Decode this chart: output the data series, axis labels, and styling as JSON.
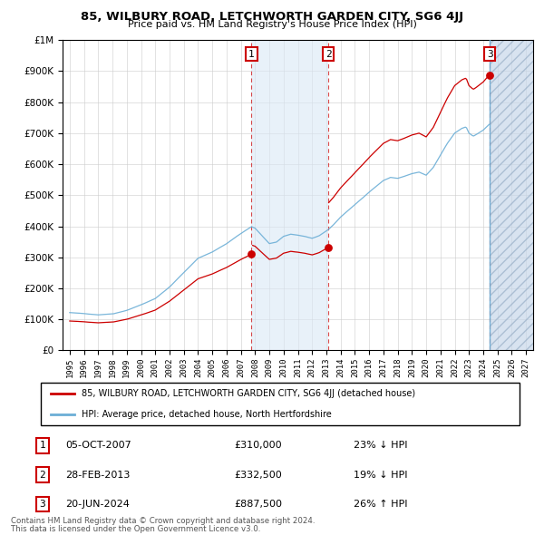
{
  "title": "85, WILBURY ROAD, LETCHWORTH GARDEN CITY, SG6 4JJ",
  "subtitle": "Price paid vs. HM Land Registry's House Price Index (HPI)",
  "legend_label_red": "85, WILBURY ROAD, LETCHWORTH GARDEN CITY, SG6 4JJ (detached house)",
  "legend_label_blue": "HPI: Average price, detached house, North Hertfordshire",
  "transactions": [
    {
      "num": 1,
      "date": "05-OCT-2007",
      "price": 310000,
      "pct": "23%",
      "dir": "↓",
      "x_year": 2007.75
    },
    {
      "num": 2,
      "date": "28-FEB-2013",
      "price": 332500,
      "pct": "19%",
      "dir": "↓",
      "x_year": 2013.15
    },
    {
      "num": 3,
      "date": "20-JUN-2024",
      "price": 887500,
      "pct": "26%",
      "dir": "↑",
      "x_year": 2024.46
    }
  ],
  "footer_line1": "Contains HM Land Registry data © Crown copyright and database right 2024.",
  "footer_line2": "This data is licensed under the Open Government Licence v3.0.",
  "ylim": [
    0,
    1000000
  ],
  "xlim_start": 1994.5,
  "xlim_end": 2027.5,
  "hatch_start": 2024.46,
  "hatch_end": 2027.5,
  "hpi_color": "#6baed6",
  "red_color": "#cc0000",
  "shade_color": "#dae8f5",
  "hatch_color": "#c8d8ea"
}
